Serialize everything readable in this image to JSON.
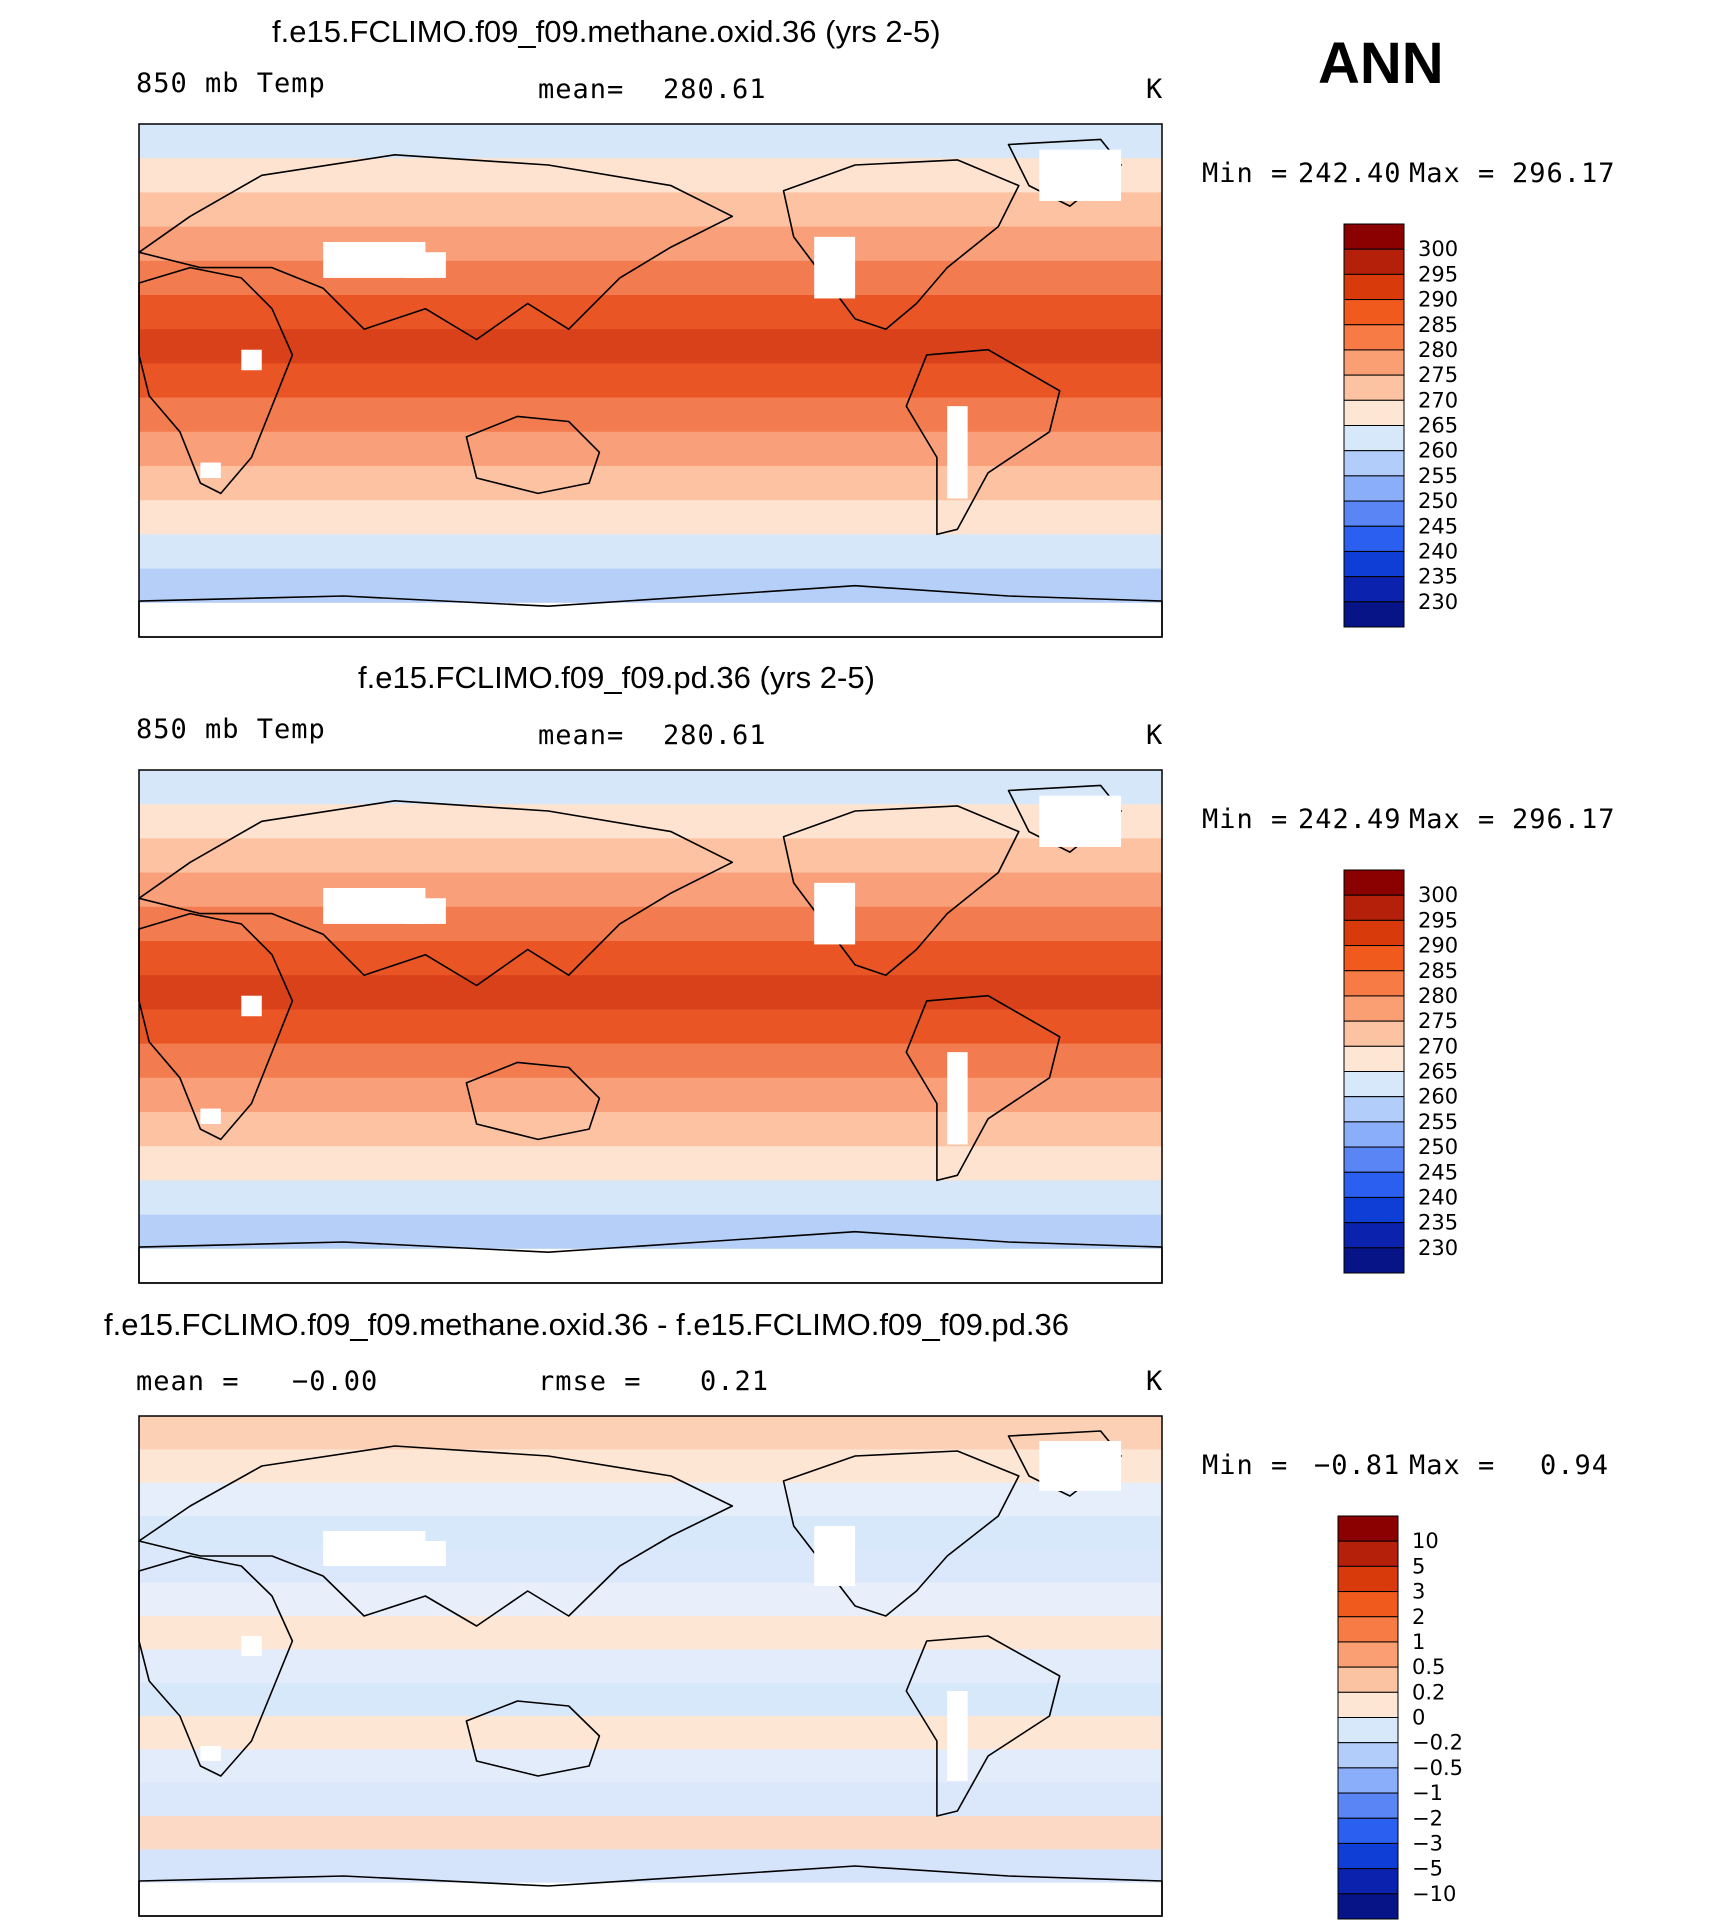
{
  "season": "ANN",
  "chart_data": [
    {
      "type": "heatmap",
      "title": "f.e15.FCLIMO.f09_f09.methane.oxid.36 (yrs 2-5)",
      "variable": "850 mb Temp",
      "stat1_label": "mean=",
      "stat1_value": "280.61",
      "units": "K",
      "min_label": "Min =",
      "min_value": "242.40",
      "max_label": "Max =",
      "max_value": "296.17",
      "colorbar": {
        "ticks": [
          "300",
          "295",
          "290",
          "285",
          "280",
          "275",
          "270",
          "265",
          "260",
          "255",
          "250",
          "245",
          "240",
          "235",
          "230"
        ],
        "colors": [
          "#8b0000",
          "#b4200a",
          "#d93a0c",
          "#f05a1c",
          "#f77b45",
          "#fa9f73",
          "#fcc3a3",
          "#fde6d4",
          "#d8e8fb",
          "#b3cdfa",
          "#8aaefa",
          "#5a86f5",
          "#2b5ff0",
          "#0f3ed6",
          "#0a22ad",
          "#061487"
        ]
      },
      "band_colors": [
        "#d6e7fa",
        "#fde3d0",
        "#fcc2a1",
        "#f9a07a",
        "#f27c50",
        "#ea5525",
        "#d9411a",
        "#ea5525",
        "#f27c50",
        "#f9a07a",
        "#fcc2a1",
        "#fde3d0",
        "#d6e7fa",
        "#b6cff8",
        "#ffffff"
      ]
    },
    {
      "type": "heatmap",
      "title": "f.e15.FCLIMO.f09_f09.pd.36 (yrs 2-5)",
      "variable": "850 mb Temp",
      "stat1_label": "mean=",
      "stat1_value": "280.61",
      "units": "K",
      "min_label": "Min =",
      "min_value": "242.49",
      "max_label": "Max =",
      "max_value": "296.17",
      "colorbar": {
        "ticks": [
          "300",
          "295",
          "290",
          "285",
          "280",
          "275",
          "270",
          "265",
          "260",
          "255",
          "250",
          "245",
          "240",
          "235",
          "230"
        ],
        "colors": [
          "#8b0000",
          "#b4200a",
          "#d93a0c",
          "#f05a1c",
          "#f77b45",
          "#fa9f73",
          "#fcc3a3",
          "#fde6d4",
          "#d8e8fb",
          "#b3cdfa",
          "#8aaefa",
          "#5a86f5",
          "#2b5ff0",
          "#0f3ed6",
          "#0a22ad",
          "#061487"
        ]
      },
      "band_colors": [
        "#d6e7fa",
        "#fde3d0",
        "#fcc2a1",
        "#f9a07a",
        "#f27c50",
        "#ea5525",
        "#d9411a",
        "#ea5525",
        "#f27c50",
        "#f9a07a",
        "#fcc2a1",
        "#fde3d0",
        "#d6e7fa",
        "#b6cff8",
        "#ffffff"
      ]
    },
    {
      "type": "heatmap",
      "title": "f.e15.FCLIMO.f09_f09.methane.oxid.36 - f.e15.FCLIMO.f09_f09.pd.36",
      "stat1_label": "mean =",
      "stat1_value": "−0.00",
      "stat2_label": "rmse =",
      "stat2_value": "0.21",
      "units": "K",
      "min_label": "Min =",
      "min_value": "−0.81",
      "max_label": "Max =",
      "max_value": "0.94",
      "colorbar": {
        "ticks": [
          "10",
          "5",
          "3",
          "2",
          "1",
          "0.5",
          "0.2",
          "0",
          "−0.2",
          "−0.5",
          "−1",
          "−2",
          "−3",
          "−5",
          "−10"
        ],
        "colors": [
          "#8b0000",
          "#b4200a",
          "#d93a0c",
          "#f05a1c",
          "#f77b45",
          "#fa9f73",
          "#fcc3a3",
          "#fde6d4",
          "#d8e8fb",
          "#b3cdfa",
          "#8aaefa",
          "#5a86f5",
          "#2b5ff0",
          "#0f3ed6",
          "#0a22ad",
          "#061487"
        ]
      },
      "band_colors": [
        "#fbd0b5",
        "#fde6d4",
        "#e6eefb",
        "#d8e8fb",
        "#dbe7fb",
        "#e8eefa",
        "#fde6d4",
        "#e3ecfb",
        "#d8e8fb",
        "#fde6d4",
        "#e3ecfb",
        "#dbe7fb",
        "#fcd9c4",
        "#d6e4fb",
        "#ffffff"
      ]
    }
  ]
}
